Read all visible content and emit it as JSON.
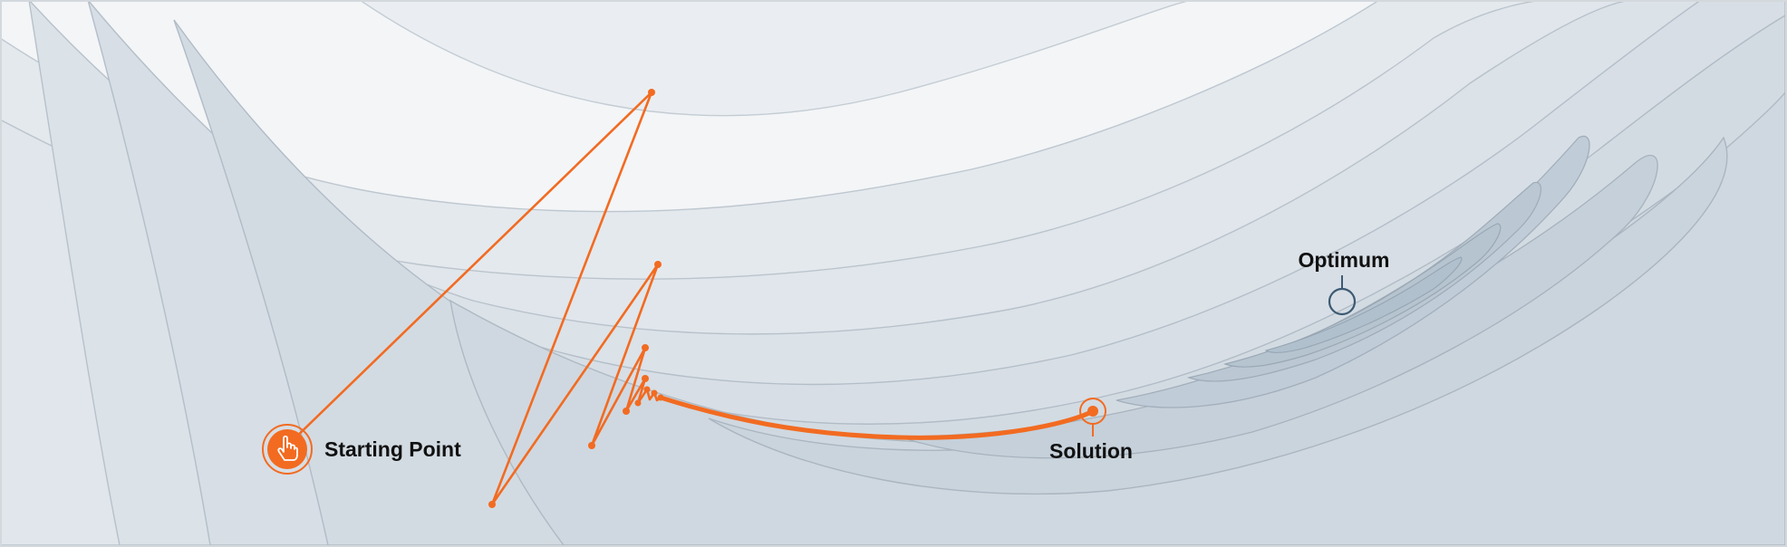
{
  "labels": {
    "start": "Starting Point",
    "solution": "Solution",
    "optimum": "Optimum"
  },
  "icons": {
    "start": "hand-pointer-icon"
  },
  "colors": {
    "path": "#f26b21",
    "contour_stroke": "#aeb9c3",
    "optimum_marker": "#3d5a73",
    "background": "#f3f5f7"
  }
}
